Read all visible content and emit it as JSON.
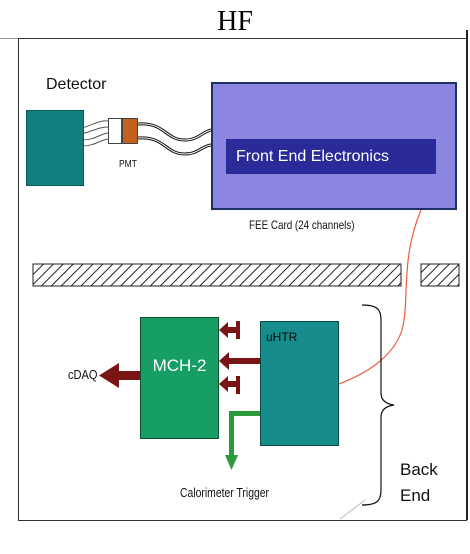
{
  "title": "HF",
  "front_end": {
    "detector_label": "Detector",
    "pmt_label": "PMT",
    "fee_box_label": "Front End Electronics",
    "fee_caption": "FEE Card (24 channels)"
  },
  "back_end": {
    "mch_label": "MCH-2",
    "uhtr_label": "uHTR",
    "cdaq_label": "cDAQ",
    "trigger_label": "Calorimeter Trigger",
    "section_label_line1": "Back",
    "section_label_line2": "End"
  },
  "colors": {
    "detector": "#117f7f",
    "fee_card": "#8b87e0",
    "fee_inner": "#2a2a99",
    "mch": "#169e64",
    "uhtr": "#168c8c",
    "daq_arrow": "#7a1515",
    "trigger_arrow": "#2a9a3a",
    "fiber": "#e8603c"
  }
}
